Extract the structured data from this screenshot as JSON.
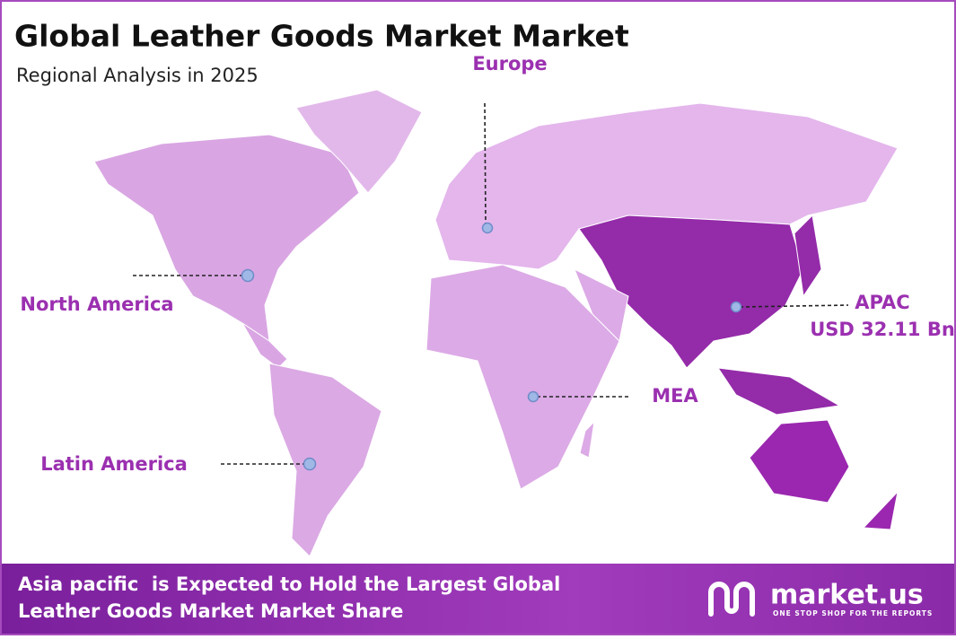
{
  "header": {
    "title": "Global Leather Goods Market Market",
    "subtitle": "Regional Analysis in 2025"
  },
  "regions": [
    {
      "label": "Europe"
    },
    {
      "label": "North America"
    },
    {
      "label": "APAC",
      "value": "USD 32.11 Bn"
    },
    {
      "label": "MEA"
    },
    {
      "label": "Latin America"
    }
  ],
  "footer": {
    "lines": [
      "Asia pacific  is Expected to Hold the Largest Global",
      "Leather Goods Market Market Share"
    ]
  },
  "logo": {
    "name": "market.us",
    "tagline": "ONE STOP SHOP FOR THE REPORTS"
  }
}
